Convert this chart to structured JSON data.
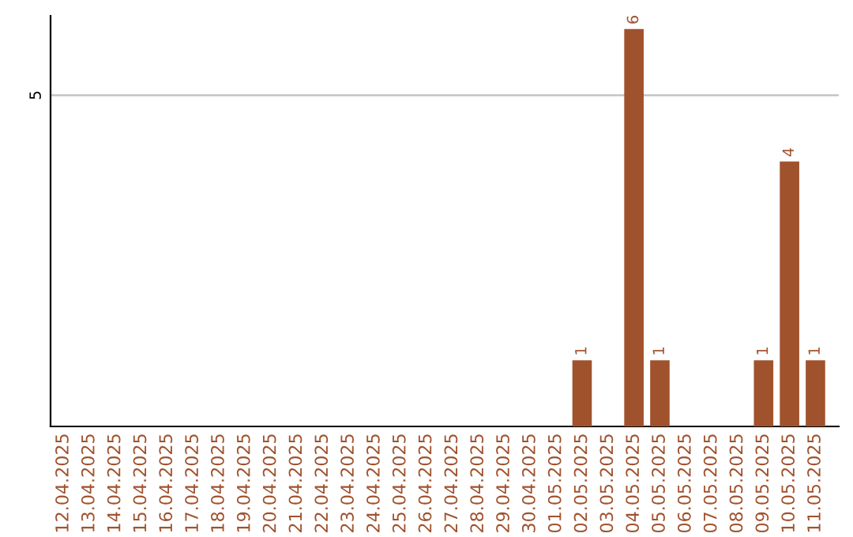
{
  "chart_data": {
    "type": "bar",
    "categories": [
      "12.04.2025",
      "13.04.2025",
      "14.04.2025",
      "15.04.2025",
      "16.04.2025",
      "17.04.2025",
      "18.04.2025",
      "19.04.2025",
      "20.04.2025",
      "21.04.2025",
      "22.04.2025",
      "23.04.2025",
      "24.04.2025",
      "25.04.2025",
      "26.04.2025",
      "27.04.2025",
      "28.04.2025",
      "29.04.2025",
      "30.04.2025",
      "01.05.2025",
      "02.05.2025",
      "03.05.2025",
      "04.05.2025",
      "05.05.2025",
      "06.05.2025",
      "07.05.2025",
      "08.05.2025",
      "09.05.2025",
      "10.05.2025",
      "11.05.2025"
    ],
    "values": [
      null,
      null,
      null,
      null,
      null,
      null,
      null,
      null,
      null,
      null,
      null,
      null,
      null,
      null,
      null,
      null,
      null,
      null,
      null,
      null,
      1,
      null,
      6,
      1,
      null,
      null,
      null,
      1,
      4,
      1
    ],
    "data_labels": true,
    "color": "#a0522d",
    "ylim": [
      0,
      6.2
    ],
    "yticks": [
      5
    ],
    "grid": "y",
    "legend": false
  }
}
